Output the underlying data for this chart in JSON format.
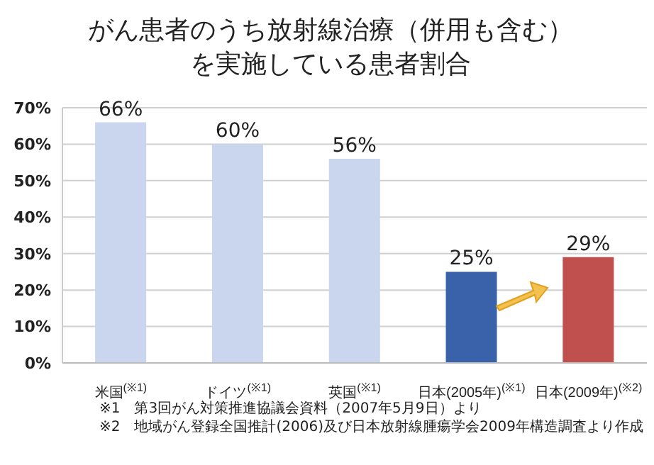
{
  "chart_data": {
    "type": "bar",
    "title": "がん患者のうち放射線治療（併用も含む）を実施している患者割合",
    "categories": [
      "米国$^{(※1)}$",
      "ドイツ$^{(※1)}$",
      "英国$^{(※1)}$",
      "日本(2005年)$^{(※1)}$",
      "日本(2009年)$^{(※2)}$"
    ],
    "values": [
      66,
      60,
      56,
      25,
      29
    ],
    "colors": [
      "#c9d6ee",
      "#c9d6ee",
      "#c9d6ee",
      "#3a62aa",
      "#c0504d"
    ],
    "value_labels": [
      "66%",
      "60%",
      "56%",
      "25%",
      "29%"
    ],
    "ylim": [
      0,
      70
    ],
    "yticks": [
      {
        "value": 0,
        "label": "0%"
      },
      {
        "value": 10,
        "label": "10%"
      },
      {
        "value": 20,
        "label": "20%"
      },
      {
        "value": 30,
        "label": "30%"
      },
      {
        "value": 40,
        "label": "40%"
      },
      {
        "value": 50,
        "label": "50%"
      },
      {
        "value": 60,
        "label": "60%"
      },
      {
        "value": 70,
        "label": "70%"
      }
    ],
    "grid": "y",
    "annotations": [
      "※1　第3回がん対策推進協議会資料（2007年5月9日）より",
      "※2　地域がん登録全国推計(2006)及び日本放射線腫瘍学会2009年構造調査より作成"
    ]
  }
}
